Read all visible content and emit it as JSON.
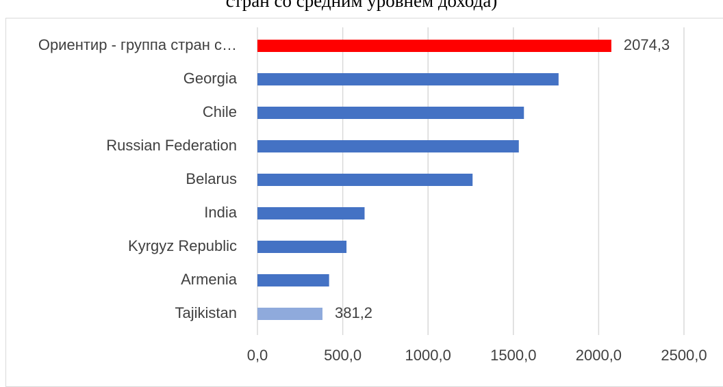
{
  "caption": "стран со средним уровнем дохода)",
  "chart_data": {
    "type": "bar",
    "orientation": "horizontal",
    "categories": [
      "Ориентир - группа стран с…",
      "Georgia",
      "Chile",
      "Russian Federation",
      "Belarus",
      "India",
      "Kyrgyz Republic",
      "Armenia",
      "Tajikistan"
    ],
    "values": [
      2074.3,
      1765,
      1562,
      1532,
      1261,
      628,
      522,
      420,
      381.2
    ],
    "bar_colors": [
      "#ff0000",
      "#4472c4",
      "#4472c4",
      "#4472c4",
      "#4472c4",
      "#4472c4",
      "#4472c4",
      "#4472c4",
      "#8faadc"
    ],
    "data_labels": {
      "0": "2074,3",
      "8": "381,2"
    },
    "xlim": [
      0,
      2500
    ],
    "xticks": [
      0,
      500,
      1000,
      1500,
      2000,
      2500
    ],
    "xtick_labels": [
      "0,0",
      "500,0",
      "1000,0",
      "1500,0",
      "2000,0",
      "2500,0"
    ],
    "grid": "vertical",
    "gridline_color": "#d9d9d9",
    "legend": "none"
  }
}
